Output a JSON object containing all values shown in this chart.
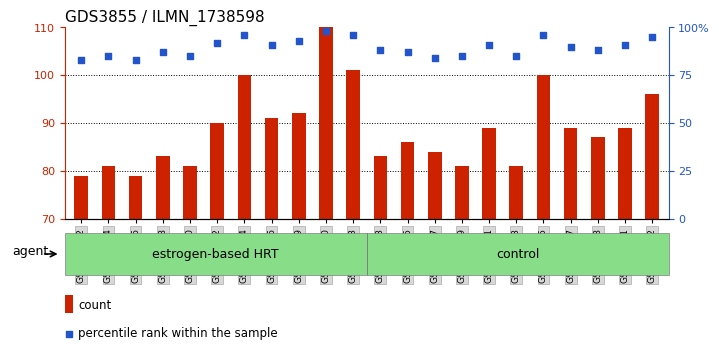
{
  "title": "GDS3855 / ILMN_1738598",
  "categories": [
    "GSM535582",
    "GSM535584",
    "GSM535586",
    "GSM535588",
    "GSM535590",
    "GSM535592",
    "GSM535594",
    "GSM535596",
    "GSM535599",
    "GSM535600",
    "GSM535603",
    "GSM535583",
    "GSM535585",
    "GSM535587",
    "GSM535589",
    "GSM535591",
    "GSM535593",
    "GSM535595",
    "GSM535597",
    "GSM535598",
    "GSM535601",
    "GSM535602"
  ],
  "bar_values": [
    79,
    81,
    79,
    83,
    81,
    90,
    100,
    91,
    92,
    110,
    101,
    83,
    86,
    84,
    81,
    89,
    81,
    100,
    89,
    87,
    89,
    96
  ],
  "percentile_values": [
    83,
    85,
    83,
    87,
    85,
    92,
    96,
    91,
    93,
    98,
    96,
    88,
    87,
    84,
    85,
    91,
    85,
    96,
    90,
    88,
    91,
    95
  ],
  "bar_color": "#cc2200",
  "percentile_color": "#2255cc",
  "ylim_left": [
    70,
    110
  ],
  "ylim_right": [
    0,
    100
  ],
  "yticks_left": [
    70,
    80,
    90,
    100,
    110
  ],
  "yticks_right": [
    0,
    25,
    50,
    75,
    100
  ],
  "ytick_labels_right": [
    "0",
    "25",
    "50",
    "75",
    "100%"
  ],
  "group1_label": "estrogen-based HRT",
  "group2_label": "control",
  "group1_count": 11,
  "group2_count": 11,
  "agent_label": "agent",
  "legend_bar_label": "count",
  "legend_percentile_label": "percentile rank within the sample",
  "group_bg_color": "#88dd88",
  "plot_bg_color": "#ffffff",
  "title_fontsize": 11,
  "bar_width": 0.5
}
